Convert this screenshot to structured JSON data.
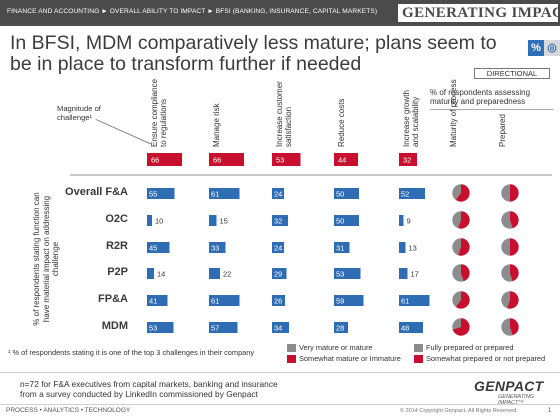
{
  "header": {
    "breadcrumb": "FINANCE AND ACCOUNTING ► OVERALL ABILITY TO IMPACT ► BFSI (BANKING, INSURANCE, CAPITAL MARKETS)",
    "logo": "GENERATING IMPACT"
  },
  "title": "In BFSI, MDM comparatively less mature; plans seem to be in place to transform further if needed",
  "icons": [
    "percent-icon",
    "global-banking-icon"
  ],
  "directional": "DIRECTIONAL",
  "respondents_heading": "% of respondents assessing maturity and preparedness",
  "magnitude_label": "Magnitude of challenge¹",
  "y_axis_label": "% of respondents stating function can have material impact on addressing challenge",
  "columns": [
    "Ensure compliance to regulations",
    "Manage risk",
    "Increase customer satisfaction",
    "Reduce costs",
    "Increase growth and scalability",
    "Maturity of process",
    "Prepared"
  ],
  "footnote": "¹ % of respondents stating it is one of the top 3 challenges in their company",
  "legend": {
    "maturity": [
      "Very mature or mature",
      "Somewhat mature or Immature"
    ],
    "preparedness": [
      "Fully prepared or prepared",
      "Somewhat prepared or not prepared"
    ]
  },
  "note": "n=72 for F&A executives from capital markets, banking and insurance\nfrom a survey conducted by LinkedIn commissioned by Genpact",
  "footer": {
    "brand": "GENPACT",
    "tagline": "GENERATING IMPACT™",
    "left": "PROCESS • ANALYTICS • TECHNOLOGY",
    "copyright": "© 2014 Copyright Genpact. All Rights Reserved.",
    "page": "1"
  },
  "colors": {
    "bar": "#2e6db4",
    "magnitude": "#c8102e",
    "pie_primary": "#8c8c8c",
    "pie_secondary": "#c8102e",
    "header_bg": "#4b4b4b"
  },
  "chart_data": {
    "type": "bar",
    "categories": [
      "Ensure compliance to regulations",
      "Manage risk",
      "Increase customer satisfaction",
      "Reduce costs",
      "Increase growth and scalability"
    ],
    "magnitude_of_challenge": [
      66,
      66,
      53,
      44,
      32
    ],
    "series": [
      {
        "name": "Overall F&A",
        "values": [
          55,
          61,
          24,
          50,
          52
        ],
        "maturity_mature_pct": 40,
        "prepared_pct": 50
      },
      {
        "name": "O2C",
        "values": [
          10,
          15,
          32,
          50,
          9
        ],
        "maturity_mature_pct": 45,
        "prepared_pct": 55
      },
      {
        "name": "R2R",
        "values": [
          45,
          33,
          24,
          31,
          13
        ],
        "maturity_mature_pct": 45,
        "prepared_pct": 50
      },
      {
        "name": "P2P",
        "values": [
          14,
          22,
          29,
          53,
          17
        ],
        "maturity_mature_pct": 55,
        "prepared_pct": 55
      },
      {
        "name": "FP&A",
        "values": [
          41,
          61,
          26,
          59,
          61
        ],
        "maturity_mature_pct": 40,
        "prepared_pct": 45
      },
      {
        "name": "MDM",
        "values": [
          53,
          57,
          34,
          28,
          48
        ],
        "maturity_mature_pct": 30,
        "prepared_pct": 55
      }
    ],
    "ylim": [
      0,
      100
    ]
  }
}
